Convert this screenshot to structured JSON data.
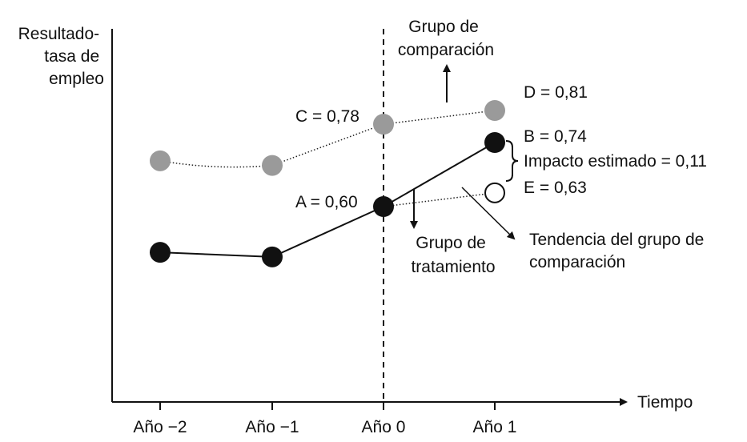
{
  "chart_data": {
    "type": "line",
    "ylabel": [
      "Resultado-",
      "tasa de",
      "empleo"
    ],
    "xlabel": "Tiempo",
    "categories": [
      "Año −2",
      "Año −1",
      "Año 0",
      "Año 1"
    ],
    "ylim": [
      0.4,
      0.9
    ],
    "series": [
      {
        "name": "Grupo de comparación",
        "label_lines": [
          "Grupo de",
          "comparación"
        ],
        "color": "#9a9a9a",
        "style": "dotted",
        "values": [
          0.7,
          0.69,
          0.78,
          0.81
        ]
      },
      {
        "name": "Grupo de tratamiento",
        "label_lines": [
          "Grupo de",
          "tratamiento"
        ],
        "color": "#111111",
        "style": "solid",
        "values": [
          0.5,
          0.49,
          0.6,
          0.74
        ]
      }
    ],
    "counterfactual": {
      "label_lines": [
        "Tendencia del grupo de",
        "comparación"
      ],
      "style": "dotted",
      "color": "#111111",
      "from": 0.6,
      "to": 0.63
    },
    "point_labels": {
      "A": "A = 0,60",
      "B": "B = 0,74",
      "C": "C = 0,78",
      "D": "D = 0,81",
      "E": "E = 0,63"
    },
    "impact_label": "Impacto estimado  = 0,11",
    "treatment_start": "Año 0"
  }
}
